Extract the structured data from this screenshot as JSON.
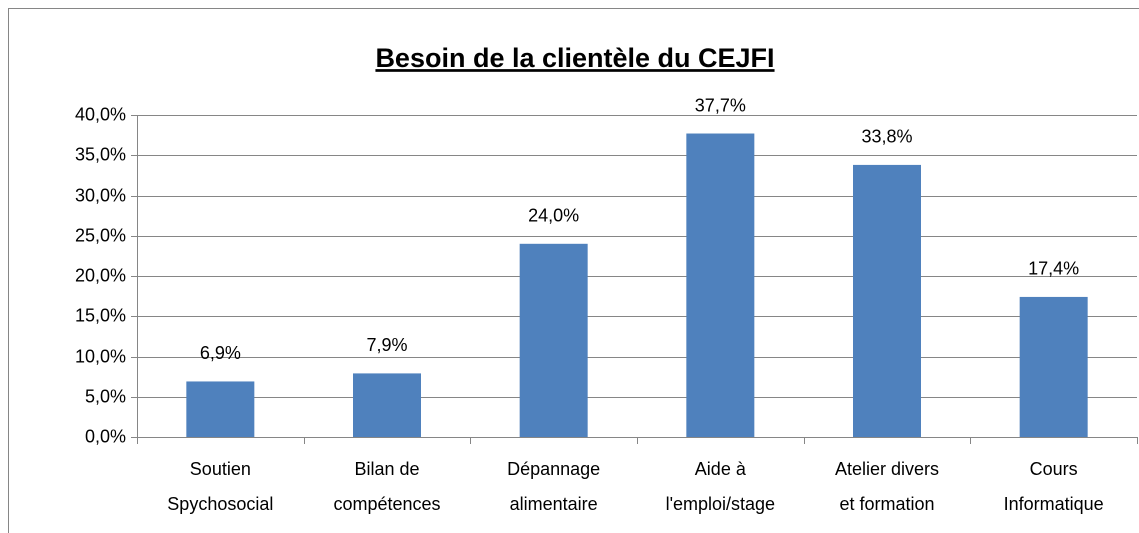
{
  "chart_data": {
    "type": "bar",
    "title": "Besoin de la clientèle du CEJFI",
    "categories": [
      [
        "Soutien",
        "Spychosocial"
      ],
      [
        "Bilan de",
        "compétences"
      ],
      [
        "Dépannage",
        "alimentaire"
      ],
      [
        "Aide à",
        "l'emploi/stage"
      ],
      [
        "Atelier divers",
        "et formation"
      ],
      [
        "Cours",
        "Informatique"
      ]
    ],
    "values": [
      6.9,
      7.9,
      24.0,
      37.7,
      33.8,
      17.4
    ],
    "value_labels": [
      "6,9%",
      "7,9%",
      "24,0%",
      "37,7%",
      "33,8%",
      "17,4%"
    ],
    "color": "#4f81bd",
    "ylim": [
      0,
      40
    ],
    "yticks": [
      {
        "value": 0,
        "label": "0,0%"
      },
      {
        "value": 5,
        "label": "5,0%"
      },
      {
        "value": 10,
        "label": "10,0%"
      },
      {
        "value": 15,
        "label": "15,0%"
      },
      {
        "value": 20,
        "label": "20,0%"
      },
      {
        "value": 25,
        "label": "25,0%"
      },
      {
        "value": 30,
        "label": "30,0%"
      },
      {
        "value": 35,
        "label": "35,0%"
      },
      {
        "value": 40,
        "label": "40,0%"
      }
    ],
    "grid": true
  }
}
